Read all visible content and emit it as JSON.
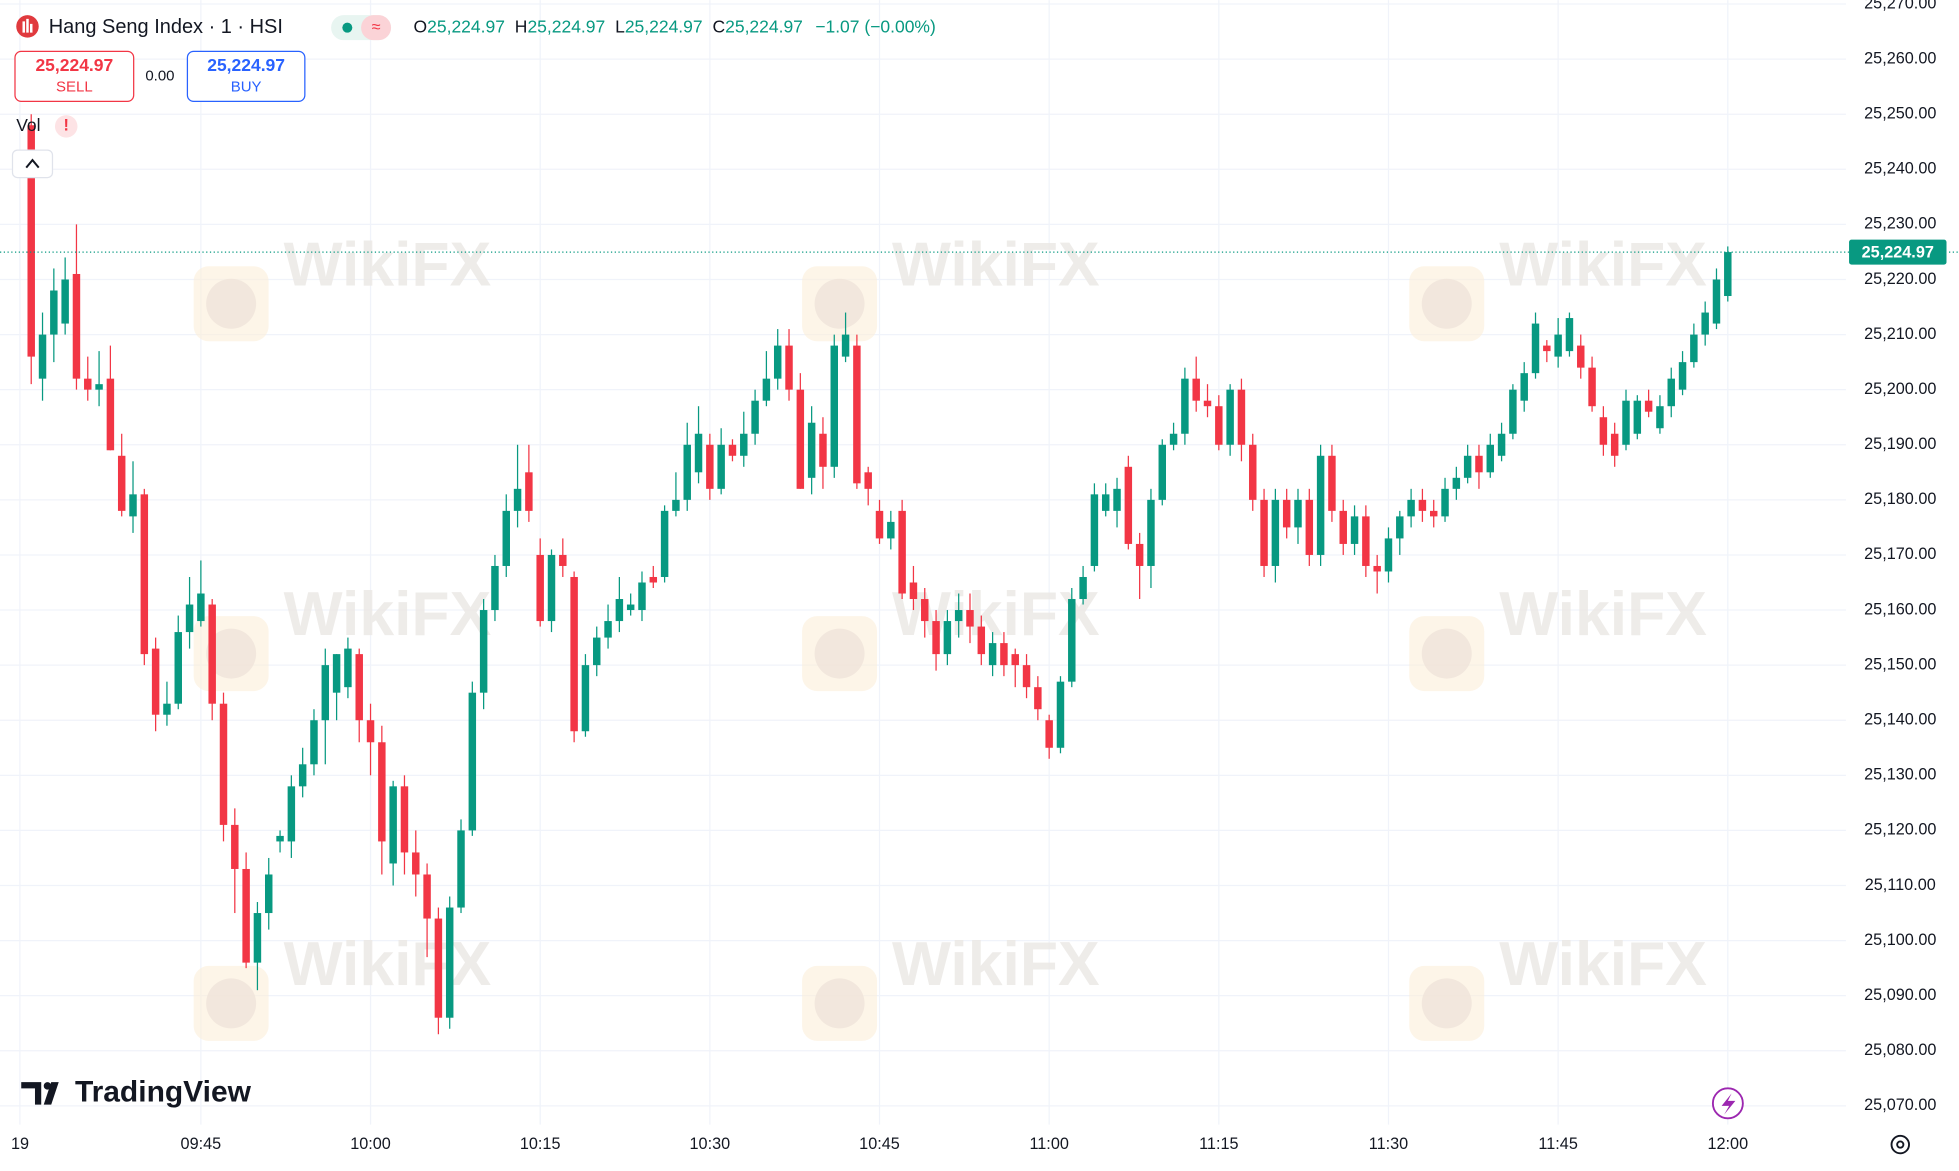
{
  "header": {
    "symbol": "Hang Seng Index · 1 · HSI",
    "ohlc_labels": [
      "O",
      "H",
      "L",
      "C"
    ],
    "ohlc_values": [
      "25,224.97",
      "25,224.97",
      "25,224.97",
      "25,224.97"
    ],
    "change": "−1.07 (−0.00%)"
  },
  "trade": {
    "sell_price": "25,224.97",
    "sell": "SELL",
    "spread": "0.00",
    "buy_price": "25,224.97",
    "buy": "BUY"
  },
  "volume_label": "Vol",
  "brand": "TradingView",
  "watermark": "WikiFX",
  "chart_data": {
    "type": "candlestick",
    "up_color": "#089981",
    "down_color": "#f23645",
    "grid": true,
    "ylim": [
      25066.6,
      25270.7
    ],
    "yticks": [
      {
        "value": 25070,
        "label": "25,070.00"
      },
      {
        "value": 25080,
        "label": "25,080.00"
      },
      {
        "value": 25090,
        "label": "25,090.00"
      },
      {
        "value": 25100,
        "label": "25,100.00"
      },
      {
        "value": 25110,
        "label": "25,110.00"
      },
      {
        "value": 25120,
        "label": "25,120.00"
      },
      {
        "value": 25130,
        "label": "25,130.00"
      },
      {
        "value": 25140,
        "label": "25,140.00"
      },
      {
        "value": 25150,
        "label": "25,150.00"
      },
      {
        "value": 25160,
        "label": "25,160.00"
      },
      {
        "value": 25170,
        "label": "25,170.00"
      },
      {
        "value": 25180,
        "label": "25,180.00"
      },
      {
        "value": 25190,
        "label": "25,190.00"
      },
      {
        "value": 25200,
        "label": "25,200.00"
      },
      {
        "value": 25210,
        "label": "25,210.00"
      },
      {
        "value": 25220,
        "label": "25,220.00"
      },
      {
        "value": 25230,
        "label": "25,230.00"
      },
      {
        "value": 25240,
        "label": "25,240.00"
      },
      {
        "value": 25250,
        "label": "25,250.00"
      },
      {
        "value": 25260,
        "label": "25,260.00"
      },
      {
        "value": 25270,
        "label": "25,270.00"
      }
    ],
    "xlim": [
      -2.76,
      160.5
    ],
    "xticks": [
      {
        "value": -1,
        "label": "19"
      },
      {
        "value": 15,
        "label": "09:45"
      },
      {
        "value": 30,
        "label": "10:00"
      },
      {
        "value": 45,
        "label": "10:15"
      },
      {
        "value": 60,
        "label": "10:30"
      },
      {
        "value": 75,
        "label": "10:45"
      },
      {
        "value": 90,
        "label": "11:00"
      },
      {
        "value": 105,
        "label": "11:15"
      },
      {
        "value": 120,
        "label": "11:30"
      },
      {
        "value": 135,
        "label": "11:45"
      },
      {
        "value": 150,
        "label": "12:00"
      }
    ],
    "last_price": {
      "value": 25224.97,
      "label": "25,224.97"
    },
    "ohlc": [
      [
        25248,
        25250,
        25201,
        25206
      ],
      [
        25202,
        25214,
        25198,
        25210
      ],
      [
        25210,
        25222,
        25205,
        25218
      ],
      [
        25212,
        25224,
        25210,
        25220
      ],
      [
        25221,
        25230,
        25200,
        25202
      ],
      [
        25202,
        25206,
        25198,
        25200
      ],
      [
        25200,
        25207,
        25197,
        25201
      ],
      [
        25202,
        25208,
        25189,
        25189
      ],
      [
        25188,
        25192,
        25177,
        25178
      ],
      [
        25177,
        25187,
        25174,
        25181
      ],
      [
        25181,
        25182,
        25150,
        25152
      ],
      [
        25153,
        25155,
        25138,
        25141
      ],
      [
        25141,
        25147,
        25139,
        25143
      ],
      [
        25143,
        25159,
        25142,
        25156
      ],
      [
        25156,
        25166,
        25153,
        25161
      ],
      [
        25158,
        25169,
        25157,
        25163
      ],
      [
        25161,
        25162,
        25140,
        25143
      ],
      [
        25143,
        25145,
        25118,
        25121
      ],
      [
        25121,
        25124,
        25105,
        25113
      ],
      [
        25113,
        25116,
        25095,
        25096
      ],
      [
        25096,
        25107,
        25091,
        25105
      ],
      [
        25105,
        25115,
        25102,
        25112
      ],
      [
        25118,
        25120,
        25116,
        25119
      ],
      [
        25118,
        25130,
        25115,
        25128
      ],
      [
        25128,
        25135,
        25126,
        25132
      ],
      [
        25132,
        25142,
        25130,
        25140
      ],
      [
        25140,
        25153,
        25132,
        25150
      ],
      [
        25145,
        25152,
        25140,
        25152
      ],
      [
        25146,
        25155,
        25144,
        25153
      ],
      [
        25152,
        25153,
        25136,
        25140
      ],
      [
        25140,
        25143,
        25130,
        25136
      ],
      [
        25136,
        25139,
        25112,
        25118
      ],
      [
        25114,
        25129,
        25110,
        25128
      ],
      [
        25128,
        25130,
        25112,
        25116
      ],
      [
        25116,
        25120,
        25108,
        25112
      ],
      [
        25112,
        25114,
        25097,
        25104
      ],
      [
        25104,
        25106,
        25083,
        25086
      ],
      [
        25086,
        25108,
        25084,
        25106
      ],
      [
        25106,
        25122,
        25105,
        25120
      ],
      [
        25120,
        25147,
        25119,
        25145
      ],
      [
        25145,
        25162,
        25142,
        25160
      ],
      [
        25160,
        25170,
        25158,
        25168
      ],
      [
        25168,
        25181,
        25166,
        25178
      ],
      [
        25178,
        25190,
        25175,
        25182
      ],
      [
        25185,
        25190,
        25176,
        25178
      ],
      [
        25170,
        25173,
        25157,
        25158
      ],
      [
        25158,
        25171,
        25156,
        25170
      ],
      [
        25170,
        25173,
        25166,
        25168
      ],
      [
        25166,
        25167,
        25136,
        25138
      ],
      [
        25138,
        25152,
        25137,
        25150
      ],
      [
        25150,
        25157,
        25148,
        25155
      ],
      [
        25155,
        25161,
        25153,
        25158
      ],
      [
        25158,
        25166,
        25156,
        25162
      ],
      [
        25160,
        25163,
        25159,
        25161
      ],
      [
        25160,
        25167,
        25158,
        25165
      ],
      [
        25166,
        25168,
        25164,
        25165
      ],
      [
        25166,
        25179,
        25165,
        25178
      ],
      [
        25178,
        25185,
        25177,
        25180
      ],
      [
        25180,
        25194,
        25178,
        25190
      ],
      [
        25185,
        25197,
        25183,
        25192
      ],
      [
        25190,
        25192,
        25180,
        25182
      ],
      [
        25182,
        25193,
        25181,
        25190
      ],
      [
        25190,
        25191,
        25187,
        25188
      ],
      [
        25188,
        25196,
        25186,
        25192
      ],
      [
        25192,
        25200,
        25190,
        25198
      ],
      [
        25198,
        25207,
        25197,
        25202
      ],
      [
        25202,
        25211,
        25200,
        25208
      ],
      [
        25208,
        25211,
        25198,
        25200
      ],
      [
        25200,
        25203,
        25182,
        25182
      ],
      [
        25184,
        25197,
        25181,
        25194
      ],
      [
        25192,
        25195,
        25182,
        25186
      ],
      [
        25186,
        25210,
        25184,
        25208
      ],
      [
        25206,
        25214,
        25205,
        25210
      ],
      [
        25208,
        25210,
        25182,
        25183
      ],
      [
        25185,
        25186,
        25179,
        25182
      ],
      [
        25178,
        25180,
        25172,
        25173
      ],
      [
        25173,
        25178,
        25171,
        25176
      ],
      [
        25178,
        25180,
        25162,
        25163
      ],
      [
        25165,
        25168,
        25160,
        25162
      ],
      [
        25162,
        25164,
        25155,
        25158
      ],
      [
        25158,
        25160,
        25149,
        25152
      ],
      [
        25152,
        25160,
        25150,
        25158
      ],
      [
        25158,
        25163,
        25155,
        25160
      ],
      [
        25160,
        25163,
        25154,
        25157
      ],
      [
        25157,
        25159,
        25150,
        25152
      ],
      [
        25150,
        25156,
        25148,
        25154
      ],
      [
        25154,
        25156,
        25148,
        25150
      ],
      [
        25152,
        25153,
        25146,
        25150
      ],
      [
        25150,
        25152,
        25144,
        25146
      ],
      [
        25146,
        25148,
        25140,
        25142
      ],
      [
        25140,
        25141,
        25133,
        25135
      ],
      [
        25135,
        25148,
        25134,
        25147
      ],
      [
        25147,
        25164,
        25146,
        25162
      ],
      [
        25162,
        25168,
        25161,
        25166
      ],
      [
        25168,
        25183,
        25167,
        25181
      ],
      [
        25178,
        25183,
        25177,
        25181
      ],
      [
        25178,
        25184,
        25175,
        25182
      ],
      [
        25186,
        25188,
        25171,
        25172
      ],
      [
        25172,
        25174,
        25162,
        25168
      ],
      [
        25168,
        25182,
        25164,
        25180
      ],
      [
        25180,
        25191,
        25179,
        25190
      ],
      [
        25190,
        25194,
        25189,
        25192
      ],
      [
        25192,
        25204,
        25190,
        25202
      ],
      [
        25202,
        25206,
        25196,
        25198
      ],
      [
        25198,
        25201,
        25195,
        25197
      ],
      [
        25197,
        25199,
        25189,
        25190
      ],
      [
        25190,
        25201,
        25188,
        25200
      ],
      [
        25200,
        25202,
        25187,
        25190
      ],
      [
        25190,
        25192,
        25178,
        25180
      ],
      [
        25180,
        25182,
        25166,
        25168
      ],
      [
        25168,
        25182,
        25165,
        25180
      ],
      [
        25180,
        25182,
        25173,
        25175
      ],
      [
        25175,
        25182,
        25172,
        25180
      ],
      [
        25180,
        25182,
        25168,
        25170
      ],
      [
        25170,
        25190,
        25168,
        25188
      ],
      [
        25188,
        25190,
        25176,
        25178
      ],
      [
        25178,
        25180,
        25170,
        25172
      ],
      [
        25172,
        25179,
        25170,
        25177
      ],
      [
        25177,
        25179,
        25166,
        25168
      ],
      [
        25168,
        25170,
        25163,
        25167
      ],
      [
        25167,
        25175,
        25165,
        25173
      ],
      [
        25173,
        25178,
        25170,
        25177
      ],
      [
        25177,
        25182,
        25175,
        25180
      ],
      [
        25180,
        25182,
        25176,
        25178
      ],
      [
        25178,
        25180,
        25175,
        25177
      ],
      [
        25177,
        25184,
        25176,
        25182
      ],
      [
        25182,
        25186,
        25180,
        25184
      ],
      [
        25184,
        25190,
        25183,
        25188
      ],
      [
        25188,
        25190,
        25182,
        25185
      ],
      [
        25185,
        25192,
        25184,
        25190
      ],
      [
        25188,
        25194,
        25187,
        25192
      ],
      [
        25192,
        25201,
        25191,
        25200
      ],
      [
        25198,
        25205,
        25196,
        25203
      ],
      [
        25203,
        25214,
        25202,
        25212
      ],
      [
        25208,
        25209,
        25205,
        25207
      ],
      [
        25206,
        25213,
        25204,
        25210
      ],
      [
        25207,
        25214,
        25206,
        25213
      ],
      [
        25208,
        25210,
        25202,
        25204
      ],
      [
        25204,
        25206,
        25196,
        25197
      ],
      [
        25195,
        25197,
        25188,
        25190
      ],
      [
        25192,
        25194,
        25186,
        25188
      ],
      [
        25190,
        25200,
        25189,
        25198
      ],
      [
        25192,
        25199,
        25191,
        25198
      ],
      [
        25198,
        25200,
        25195,
        25196
      ],
      [
        25193,
        25199,
        25192,
        25197
      ],
      [
        25197,
        25204,
        25195,
        25202
      ],
      [
        25200,
        25207,
        25199,
        25205
      ],
      [
        25205,
        25212,
        25204,
        25210
      ],
      [
        25210,
        25216,
        25208,
        25214
      ],
      [
        25212,
        25222,
        25211,
        25220
      ],
      [
        25217,
        25226,
        25216,
        25224.97
      ]
    ]
  }
}
